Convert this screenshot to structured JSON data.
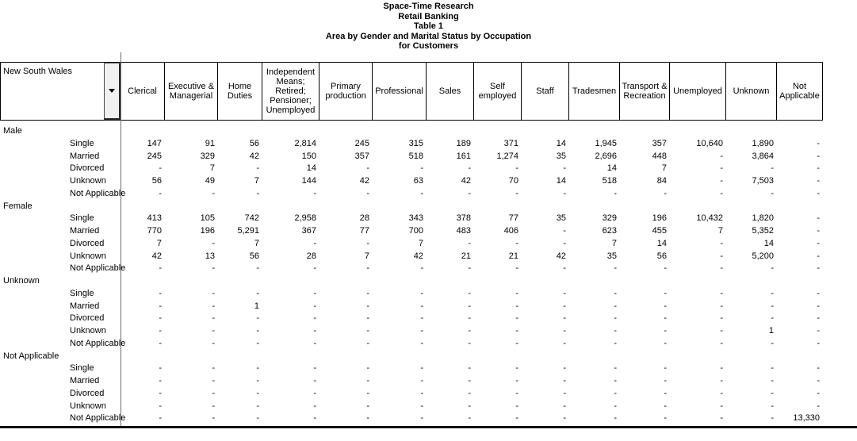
{
  "title_lines": [
    "Space-Time Research",
    "Retail Banking",
    "Table 1",
    "Area by Gender and Marital Status by Occupation",
    "for Customers"
  ],
  "icons": {
    "area_dropdown": "chevron-down"
  },
  "colors": {
    "border": "#000000",
    "divider": "#6e6e6e",
    "button_face": "#f1f1f1",
    "text": "#000000"
  },
  "table": {
    "row_header_label": "New South Wales",
    "columns": [
      "Clerical",
      "Executive & Managerial",
      "Home Duties",
      "Independent Means; Retired; Pensioner; Unemployed",
      "Primary production",
      "Professional",
      "Sales",
      "Self employed",
      "Staff",
      "Tradesmen",
      "Transport & Recreation",
      "Unemployed",
      "Unknown",
      "Not Applicable"
    ],
    "groups": [
      {
        "label": "Male",
        "rows": [
          {
            "label": "Single",
            "values": [
              "147",
              "91",
              "56",
              "2,814",
              "245",
              "315",
              "189",
              "371",
              "14",
              "1,945",
              "357",
              "10,640",
              "1,890",
              "-"
            ]
          },
          {
            "label": "Married",
            "values": [
              "245",
              "329",
              "42",
              "150",
              "357",
              "518",
              "161",
              "1,274",
              "35",
              "2,696",
              "448",
              "-",
              "3,864",
              "-"
            ]
          },
          {
            "label": "Divorced",
            "values": [
              "-",
              "7",
              "-",
              "14",
              "-",
              "-",
              "-",
              "-",
              "-",
              "14",
              "7",
              "-",
              "-",
              "-"
            ]
          },
          {
            "label": "Unknown",
            "values": [
              "56",
              "49",
              "7",
              "144",
              "42",
              "63",
              "42",
              "70",
              "14",
              "518",
              "84",
              "-",
              "7,503",
              "-"
            ]
          },
          {
            "label": "Not Applicable",
            "values": [
              "-",
              "-",
              "-",
              "-",
              "-",
              "-",
              "-",
              "-",
              "-",
              "-",
              "-",
              "-",
              "-",
              "-"
            ]
          }
        ]
      },
      {
        "label": "Female",
        "rows": [
          {
            "label": "Single",
            "values": [
              "413",
              "105",
              "742",
              "2,958",
              "28",
              "343",
              "378",
              "77",
              "35",
              "329",
              "196",
              "10,432",
              "1,820",
              "-"
            ]
          },
          {
            "label": "Married",
            "values": [
              "770",
              "196",
              "5,291",
              "367",
              "77",
              "700",
              "483",
              "406",
              "-",
              "623",
              "455",
              "7",
              "5,352",
              "-"
            ]
          },
          {
            "label": "Divorced",
            "values": [
              "7",
              "-",
              "7",
              "-",
              "-",
              "7",
              "-",
              "-",
              "-",
              "7",
              "14",
              "-",
              "14",
              "-"
            ]
          },
          {
            "label": "Unknown",
            "values": [
              "42",
              "13",
              "56",
              "28",
              "7",
              "42",
              "21",
              "21",
              "42",
              "35",
              "56",
              "-",
              "5,200",
              "-"
            ]
          },
          {
            "label": "Not Applicable",
            "values": [
              "-",
              "-",
              "-",
              "-",
              "-",
              "-",
              "-",
              "-",
              "-",
              "-",
              "-",
              "-",
              "-",
              "-"
            ]
          }
        ]
      },
      {
        "label": "Unknown",
        "rows": [
          {
            "label": "Single",
            "values": [
              "-",
              "-",
              "-",
              "-",
              "-",
              "-",
              "-",
              "-",
              "-",
              "-",
              "-",
              "-",
              "-",
              "-"
            ]
          },
          {
            "label": "Married",
            "values": [
              "-",
              "-",
              "1",
              "-",
              "-",
              "-",
              "-",
              "-",
              "-",
              "-",
              "-",
              "-",
              "-",
              "-"
            ]
          },
          {
            "label": "Divorced",
            "values": [
              "-",
              "-",
              "-",
              "-",
              "-",
              "-",
              "-",
              "-",
              "-",
              "-",
              "-",
              "-",
              "-",
              "-"
            ]
          },
          {
            "label": "Unknown",
            "values": [
              "-",
              "-",
              "-",
              "-",
              "-",
              "-",
              "-",
              "-",
              "-",
              "-",
              "-",
              "-",
              "1",
              "-"
            ]
          },
          {
            "label": "Not Applicable",
            "values": [
              "-",
              "-",
              "-",
              "-",
              "-",
              "-",
              "-",
              "-",
              "-",
              "-",
              "-",
              "-",
              "-",
              "-"
            ]
          }
        ]
      },
      {
        "label": "Not Applicable",
        "rows": [
          {
            "label": "Single",
            "values": [
              "-",
              "-",
              "-",
              "-",
              "-",
              "-",
              "-",
              "-",
              "-",
              "-",
              "-",
              "-",
              "-",
              "-"
            ]
          },
          {
            "label": "Married",
            "values": [
              "-",
              "-",
              "-",
              "-",
              "-",
              "-",
              "-",
              "-",
              "-",
              "-",
              "-",
              "-",
              "-",
              "-"
            ]
          },
          {
            "label": "Divorced",
            "values": [
              "-",
              "-",
              "-",
              "-",
              "-",
              "-",
              "-",
              "-",
              "-",
              "-",
              "-",
              "-",
              "-",
              "-"
            ]
          },
          {
            "label": "Unknown",
            "values": [
              "-",
              "-",
              "-",
              "-",
              "-",
              "-",
              "-",
              "-",
              "-",
              "-",
              "-",
              "-",
              "-",
              "-"
            ]
          },
          {
            "label": "Not Applicable",
            "values": [
              "-",
              "-",
              "-",
              "-",
              "-",
              "-",
              "-",
              "-",
              "-",
              "-",
              "-",
              "-",
              "-",
              "13,330"
            ]
          }
        ]
      }
    ]
  }
}
